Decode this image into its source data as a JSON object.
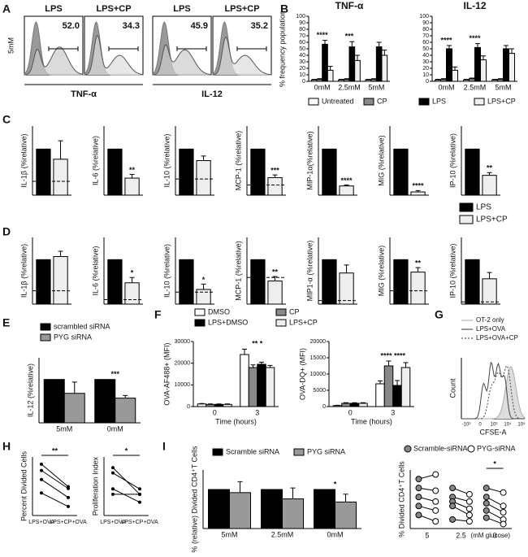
{
  "panel_labels": [
    "A",
    "B",
    "C",
    "D",
    "E",
    "F",
    "G",
    "H",
    "I"
  ],
  "legends": [
    {
      "entries": [
        {
          "name": "LPS",
          "color": "#000000"
        },
        {
          "name": "LPS+CP",
          "color": "#eeeeee"
        }
      ]
    }
  ],
  "chart_data": [
    {
      "type": "flow",
      "ylabel": "5mM",
      "titles": [
        "LPS",
        "LPS+CP",
        "LPS",
        "LPS+CP"
      ],
      "gates": [
        "52.0",
        "34.3",
        "45.9",
        "35.2"
      ],
      "xlabels": [
        "TNF-α",
        "IL-12"
      ]
    },
    {
      "type": "grouped",
      "title": "TNF-α",
      "ylabel": "% frequency population",
      "categories": [
        "0mM",
        "2.5mM",
        "5mM"
      ],
      "ylim": [
        0,
        100
      ],
      "yticks": [
        0,
        10,
        20,
        30,
        40,
        50,
        60,
        70,
        80,
        90,
        100
      ],
      "legend": true,
      "series": [
        {
          "name": "Untreated",
          "color": "#ffffff",
          "values": [
            2,
            2,
            2
          ],
          "errors": [
            1,
            1,
            1
          ]
        },
        {
          "name": "CP",
          "color": "#888888",
          "values": [
            3,
            3,
            3
          ],
          "errors": [
            1,
            1,
            1
          ]
        },
        {
          "name": "LPS",
          "color": "#000000",
          "values": [
            57,
            53,
            53
          ],
          "errors": [
            6,
            8,
            7
          ]
        },
        {
          "name": "LPS+CP",
          "color": "#f0f0f0",
          "values": [
            17,
            32,
            40
          ],
          "errors": [
            6,
            8,
            8
          ]
        }
      ],
      "sig": [
        "****",
        "***",
        null
      ]
    },
    {
      "type": "grouped",
      "title": "IL-12",
      "categories": [
        "0mM",
        "2.5mM",
        "5mM"
      ],
      "ylim": [
        0,
        100
      ],
      "yticks": [
        0,
        10,
        20,
        30,
        40,
        50,
        60,
        70,
        80,
        90,
        100
      ],
      "series": [
        {
          "color": "#ffffff",
          "values": [
            2,
            2,
            2
          ],
          "errors": [
            1,
            1,
            1
          ]
        },
        {
          "color": "#888888",
          "values": [
            3,
            4,
            3
          ],
          "errors": [
            1,
            1,
            1
          ]
        },
        {
          "color": "#000000",
          "values": [
            50,
            52,
            50
          ],
          "errors": [
            5,
            6,
            5
          ]
        },
        {
          "color": "#f0f0f0",
          "values": [
            17,
            33,
            43
          ],
          "errors": [
            5,
            6,
            7
          ]
        }
      ],
      "sig": [
        "****",
        "****",
        null
      ]
    },
    {
      "type": "bar",
      "ylabel": "IL-1β (%relative)",
      "values": [
        100,
        78
      ],
      "errors": [
        null,
        40
      ],
      "colors": [
        "#000000",
        "#eeeeee"
      ],
      "ylim": [
        0,
        150
      ],
      "baseline": 30,
      "sig": [
        null,
        null
      ]
    },
    {
      "type": "bar",
      "ylabel": "IL-6 (%relative)",
      "values": [
        100,
        37
      ],
      "errors": [
        null,
        8
      ],
      "colors": [
        "#000000",
        "#eeeeee"
      ],
      "ylim": [
        0,
        150
      ],
      "sig": [
        null,
        "**"
      ]
    },
    {
      "type": "bar",
      "ylabel": "IL-10 (%relative)",
      "values": [
        100,
        75
      ],
      "errors": [
        null,
        10
      ],
      "colors": [
        "#000000",
        "#eeeeee"
      ],
      "ylim": [
        0,
        150
      ],
      "baseline": 35,
      "sig": [
        null,
        null
      ]
    },
    {
      "type": "bar",
      "ylabel": "MCP-1 (%relative)",
      "values": [
        100,
        38
      ],
      "errors": [
        null,
        6
      ],
      "colors": [
        "#000000",
        "#eeeeee"
      ],
      "ylim": [
        0,
        150
      ],
      "baseline": 22,
      "sig": [
        null,
        "***"
      ]
    },
    {
      "type": "bar",
      "ylabel": "MIP-1α(%relative)",
      "values": [
        100,
        20
      ],
      "errors": [
        null,
        2
      ],
      "colors": [
        "#000000",
        "#eeeeee"
      ],
      "ylim": [
        0,
        150
      ],
      "sig": [
        null,
        "****"
      ]
    },
    {
      "type": "bar",
      "ylabel": "MIG (%relative)",
      "values": [
        100,
        7
      ],
      "errors": [
        null,
        3
      ],
      "colors": [
        "#000000",
        "#eeeeee"
      ],
      "ylim": [
        0,
        150
      ],
      "sig": [
        null,
        "****"
      ]
    },
    {
      "type": "bar",
      "ylabel": "IP-10 (%relative)",
      "values": [
        100,
        43
      ],
      "errors": [
        null,
        6
      ],
      "colors": [
        "#000000",
        "#eeeeee"
      ],
      "ylim": [
        0,
        150
      ],
      "sig": [
        null,
        "**"
      ]
    },
    {
      "type": "bar",
      "ylabel": "IL-1β (%relative)",
      "values": [
        100,
        107
      ],
      "errors": [
        null,
        12
      ],
      "colors": [
        "#000000",
        "#eeeeee"
      ],
      "ylim": [
        0,
        150
      ],
      "baseline": 30,
      "sig": [
        null,
        null
      ]
    },
    {
      "type": "bar",
      "ylabel": "IL-6 (%relative)",
      "values": [
        100,
        48
      ],
      "errors": [
        null,
        12
      ],
      "colors": [
        "#000000",
        "#eeeeee"
      ],
      "ylim": [
        0,
        150
      ],
      "baseline": 10,
      "sig": [
        null,
        "*"
      ]
    },
    {
      "type": "bar",
      "ylabel": "IL-10 (%relative)",
      "values": [
        100,
        33
      ],
      "errors": [
        null,
        12
      ],
      "colors": [
        "#000000",
        "#eeeeee"
      ],
      "ylim": [
        0,
        150
      ],
      "baseline": 27,
      "sig": [
        null,
        "*"
      ]
    },
    {
      "type": "bar",
      "ylabel": "MCP-1 (%relative)",
      "values": [
        100,
        52
      ],
      "errors": [
        null,
        10
      ],
      "colors": [
        "#000000",
        "#eeeeee"
      ],
      "ylim": [
        0,
        150
      ],
      "baseline": 60,
      "sig": [
        null,
        "**"
      ]
    },
    {
      "type": "bar",
      "ylabel": "MIP1-α (%relative)",
      "values": [
        100,
        70
      ],
      "errors": [
        null,
        18
      ],
      "colors": [
        "#000000",
        "#eeeeee"
      ],
      "ylim": [
        0,
        150
      ],
      "baseline": 8,
      "sig": [
        null,
        null
      ]
    },
    {
      "type": "bar",
      "ylabel": "MIG (%relative)",
      "values": [
        100,
        72
      ],
      "errors": [
        null,
        10
      ],
      "colors": [
        "#000000",
        "#eeeeee"
      ],
      "ylim": [
        0,
        150
      ],
      "baseline": 30,
      "sig": [
        null,
        "**"
      ]
    },
    {
      "type": "bar",
      "ylabel": "IP-10 (%relative)",
      "values": [
        100,
        57
      ],
      "errors": [
        null,
        14
      ],
      "colors": [
        "#000000",
        "#eeeeee"
      ],
      "ylim": [
        0,
        150
      ],
      "baseline": 5,
      "sig": [
        null,
        null
      ]
    },
    {
      "type": "grouped",
      "ylabel": "IL-12 (%relative)",
      "categories": [
        "5mM",
        "0mM"
      ],
      "ylim": [
        0,
        150
      ],
      "legend": true,
      "series": [
        {
          "name": "scrambled siRNA",
          "color": "#000000",
          "values": [
            100,
            100
          ],
          "errors": [
            null,
            null
          ]
        },
        {
          "name": "PYG siRNA",
          "color": "#999999",
          "values": [
            68,
            57
          ],
          "errors": [
            26,
            6
          ]
        }
      ],
      "sig": [
        null,
        "***"
      ]
    },
    {
      "type": "grouped",
      "ylabel": "OVA-AF488+ (MFI)",
      "xlabel": "Time (hours)",
      "categories": [
        "0",
        "3"
      ],
      "ylim": [
        0,
        30000
      ],
      "yticks": [
        0,
        10000,
        20000,
        30000
      ],
      "legend": true,
      "series": [
        {
          "name": "DMSO",
          "color": "#ffffff",
          "values": [
            1200,
            24000
          ],
          "errors": [
            200,
            2500
          ]
        },
        {
          "name": "CP",
          "color": "#888888",
          "values": [
            1000,
            18000
          ],
          "errors": [
            200,
            1200
          ]
        },
        {
          "name": "LPS+DMSO",
          "color": "#000000",
          "values": [
            1000,
            19500
          ],
          "errors": [
            200,
            1000
          ]
        },
        {
          "name": "LPS+CP",
          "color": "#eeeeee",
          "values": [
            1000,
            18000
          ],
          "errors": [
            200,
            1000
          ]
        }
      ],
      "sig": [
        null,
        "**   *"
      ]
    },
    {
      "type": "grouped",
      "ylabel": "OVA-DQ+ (MFI)",
      "xlabel": "Time (hours)",
      "categories": [
        "0",
        "3"
      ],
      "ylim": [
        0,
        20000
      ],
      "yticks": [
        0,
        5000,
        10000,
        15000,
        20000
      ],
      "series": [
        {
          "color": "#ffffff",
          "values": [
            300,
            7000
          ],
          "errors": [
            100,
            900
          ]
        },
        {
          "color": "#888888",
          "values": [
            1000,
            12500
          ],
          "errors": [
            200,
            1500
          ]
        },
        {
          "color": "#000000",
          "values": [
            1000,
            6500
          ],
          "errors": [
            200,
            1500
          ]
        },
        {
          "color": "#eeeeee",
          "values": [
            1000,
            12000
          ],
          "errors": [
            200,
            1500
          ]
        }
      ],
      "sig": [
        null,
        "****  ****"
      ]
    },
    {
      "type": "flow",
      "ylabel": "Count",
      "xlabel": "CFSE-A",
      "legend": [
        "OT-2 only",
        "LPS+OVA",
        "LPS+OVA+CP"
      ],
      "xtick_labels": [
        "-10³",
        "0",
        "10³",
        "10⁴",
        "10⁵"
      ]
    },
    {
      "type": "paired",
      "ylabel": "Percent Divided Cells",
      "categories": [
        "LPS+OVA",
        "LPS+CP+OVA"
      ],
      "ylim": [
        30,
        95
      ],
      "series": [
        {
          "values": [
            87,
            62
          ]
        },
        {
          "values": [
            80,
            60
          ]
        },
        {
          "values": [
            70,
            50
          ]
        },
        {
          "values": [
            55,
            40
          ]
        }
      ],
      "sig": "**"
    },
    {
      "type": "paired",
      "ylabel": "Proliferation Index",
      "categories": [
        "LPS+OVA",
        "LPS+CP+OVA"
      ],
      "ylim": [
        1.5,
        2.6
      ],
      "series": [
        {
          "values": [
            2.4,
            1.9
          ]
        },
        {
          "values": [
            2.3,
            2.0
          ]
        },
        {
          "values": [
            2.0,
            1.75
          ]
        },
        {
          "values": [
            1.9,
            1.9
          ]
        }
      ],
      "sig": "*"
    },
    {
      "type": "grouped",
      "ylabel": "% (relative) Divided CD4⁺T Cells",
      "categories": [
        "5mM",
        "2.5mM",
        "0mM"
      ],
      "ylim": [
        0,
        150
      ],
      "legend": true,
      "series": [
        {
          "name": "Scramble siRNA",
          "color": "#000000",
          "values": [
            100,
            100,
            100
          ],
          "errors": [
            null,
            null,
            null
          ]
        },
        {
          "name": "PYG siRNA",
          "color": "#999999",
          "values": [
            92,
            76,
            68
          ],
          "errors": [
            28,
            28,
            20
          ]
        }
      ],
      "sig": [
        null,
        null,
        "*"
      ]
    },
    {
      "type": "pairs",
      "ylabel": "% Divided CD4⁺T Cells",
      "categories": [
        "5",
        "2.5",
        "0"
      ],
      "xlabel": "(mM glucose)",
      "ylim": [
        0,
        65
      ],
      "legend": true,
      "series": [
        {
          "name": "Scramble-siRNA",
          "color": "#888888",
          "values": [
            [
              55,
              45,
              35,
              25,
              15
            ],
            [
              45,
              35,
              30,
              25,
              10
            ],
            [
              45,
              35,
              28,
              20,
              12
            ]
          ]
        },
        {
          "name": "PYG-siRNA",
          "color": "#ffffff",
          "values": [
            [
              60,
              42,
              30,
              20,
              8
            ],
            [
              38,
              30,
              22,
              15,
              8
            ],
            [
              40,
              25,
              18,
              10,
              5
            ]
          ]
        }
      ],
      "sig": [
        null,
        null,
        "*"
      ]
    }
  ]
}
